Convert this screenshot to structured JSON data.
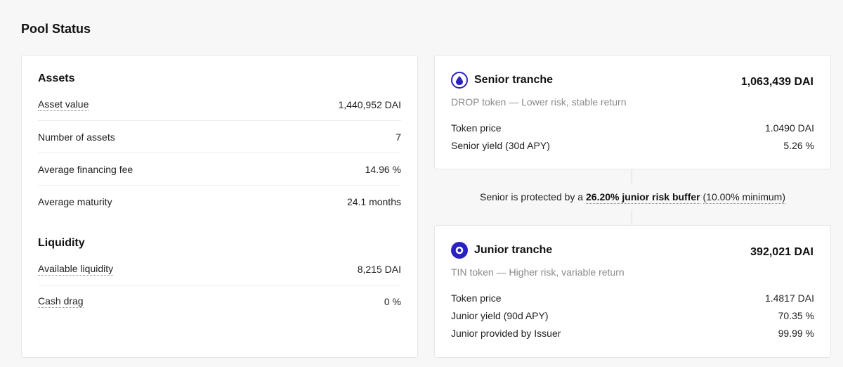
{
  "page": {
    "title": "Pool Status"
  },
  "assets": {
    "title": "Assets",
    "rows": [
      {
        "label": "Asset value",
        "value": "1,440,952 DAI"
      },
      {
        "label": "Number of assets",
        "value": "7"
      },
      {
        "label": "Average financing fee",
        "value": "14.96 %"
      },
      {
        "label": "Average maturity",
        "value": "24.1 months"
      }
    ]
  },
  "liquidity": {
    "title": "Liquidity",
    "rows": [
      {
        "label": "Available liquidity",
        "value": "8,215 DAI"
      },
      {
        "label": "Cash drag",
        "value": "0 %"
      }
    ]
  },
  "senior": {
    "name": "Senior tranche",
    "amount": "1,063,439 DAI",
    "subtitle": "DROP token — Lower risk, stable return",
    "rows": [
      {
        "label": "Token price",
        "value": "1.0490 DAI"
      },
      {
        "label": "Senior yield (30d APY)",
        "value": "5.26 %"
      }
    ],
    "icon": "drop-icon"
  },
  "buffer": {
    "prefix": "Senior is protected by a ",
    "highlight": "26.20% junior risk buffer",
    "suffix": "(10.00% minimum)"
  },
  "junior": {
    "name": "Junior tranche",
    "amount": "392,021 DAI",
    "subtitle": "TIN token — Higher risk, variable return",
    "rows": [
      {
        "label": "Token price",
        "value": "1.4817 DAI"
      },
      {
        "label": "Junior yield (90d APY)",
        "value": "70.35 %"
      },
      {
        "label": "Junior provided by Issuer",
        "value": "99.99 %"
      }
    ],
    "icon": "tin-icon"
  },
  "colors": {
    "accent": "#2a21c4",
    "muted": "#8a8a8a"
  }
}
